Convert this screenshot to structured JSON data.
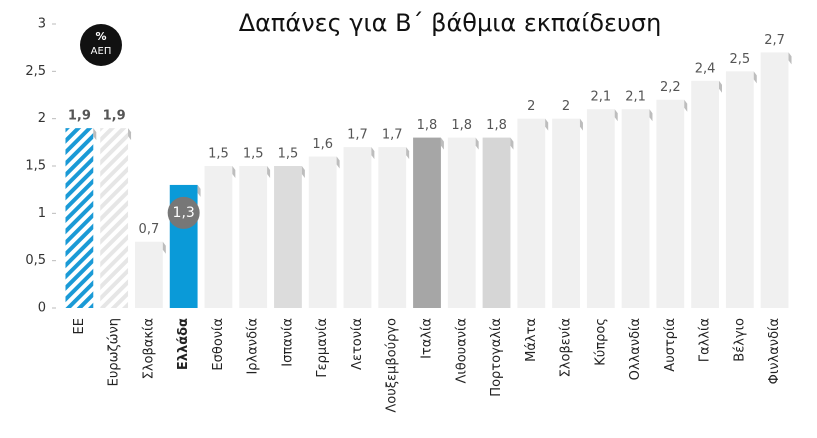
{
  "chart_data": {
    "type": "bar",
    "title": "Δαπάνες για Β΄ βάθμια εκπαίδευση",
    "unit_label": {
      "symbol": "%",
      "text": "ΑΕΠ"
    },
    "categories": [
      "ΕΕ",
      "Ευρωζώνη",
      "Σλοβακία",
      "Ελλάδα",
      "Εσθονία",
      "Ιρλανδία",
      "Ισπανία",
      "Γερμανία",
      "Λετονία",
      "Λουξεμβούργο",
      "Ιταλία",
      "Λιθουανία",
      "Πορτογαλία",
      "Μάλτα",
      "Σλοβενία",
      "Κύπρος",
      "Ολλανδία",
      "Αυστρία",
      "Γαλλία",
      "Βέλγιο",
      "Φινλανδία"
    ],
    "values": [
      1.9,
      1.9,
      0.7,
      1.3,
      1.5,
      1.5,
      1.5,
      1.6,
      1.7,
      1.7,
      1.8,
      1.8,
      1.8,
      2,
      2,
      2.1,
      2.1,
      2.2,
      2.4,
      2.5,
      2.7
    ],
    "value_labels": [
      "1,9",
      "1,9",
      "0,7",
      "1,3",
      "1,5",
      "1,5",
      "1,5",
      "1,6",
      "1,7",
      "1,7",
      "1,8",
      "1,8",
      "1,8",
      "2",
      "2",
      "2,1",
      "2,1",
      "2,2",
      "2,4",
      "2,5",
      "2,7"
    ],
    "colors": [
      "#1a9ad6",
      "#e6e6e6",
      "#f0f0f0",
      "#0a9ad8",
      "#f0f0f0",
      "#f0f0f0",
      "#dcdcdc",
      "#f0f0f0",
      "#f0f0f0",
      "#f0f0f0",
      "#a6a6a6",
      "#f0f0f0",
      "#d6d6d6",
      "#f0f0f0",
      "#f0f0f0",
      "#f0f0f0",
      "#f0f0f0",
      "#f0f0f0",
      "#f0f0f0",
      "#f0f0f0",
      "#f0f0f0"
    ],
    "hatched": [
      true,
      true,
      false,
      false,
      false,
      false,
      false,
      false,
      false,
      false,
      false,
      false,
      false,
      false,
      false,
      false,
      false,
      false,
      false,
      false,
      false
    ],
    "highlight_index": 3,
    "ylim": [
      0,
      3
    ],
    "yticks": [
      0,
      {
        "value": 0.5,
        "label": "0,5"
      },
      1,
      {
        "value": 1.5,
        "label": "1,5"
      },
      2,
      {
        "value": 2.5,
        "label": "2,5"
      },
      3
    ],
    "grid": false
  }
}
